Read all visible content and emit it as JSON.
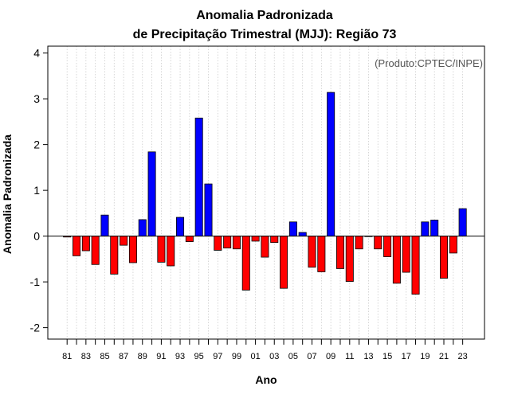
{
  "chart_data": {
    "type": "bar",
    "title": "Anomalia Padronizada",
    "subtitle": "de Precipitação Trimestral (MJJ): Região 73",
    "xlabel": "Ano",
    "ylabel": "Anomalia Padronizada",
    "annotation": "(Produto:CPTEC/INPE)",
    "ylim": [
      -2.25,
      4.15
    ],
    "yticks": [
      -2,
      -1,
      0,
      1,
      2,
      3,
      4
    ],
    "ytick_labels": [
      "-2",
      "-1",
      "0",
      "1",
      "2",
      "3",
      "4"
    ],
    "grid": "vertical dotted",
    "colors": {
      "positive": "#0000ff",
      "negative": "#ff0000",
      "zero_line": "#000000"
    },
    "categories": [
      "1981",
      "1982",
      "1983",
      "1984",
      "1985",
      "1986",
      "1987",
      "1988",
      "1989",
      "1990",
      "1991",
      "1992",
      "1993",
      "1994",
      "1995",
      "1996",
      "1997",
      "1998",
      "1999",
      "2000",
      "2001",
      "2002",
      "2003",
      "2004",
      "2005",
      "2006",
      "2007",
      "2008",
      "2009",
      "2010",
      "2011",
      "2012",
      "2013",
      "2014",
      "2015",
      "2016",
      "2017",
      "2018",
      "2019",
      "2020",
      "2021",
      "2022",
      "2023"
    ],
    "xtick_labels": [
      "81",
      "83",
      "85",
      "87",
      "89",
      "91",
      "93",
      "95",
      "97",
      "99",
      "01",
      "03",
      "05",
      "07",
      "09",
      "11",
      "13",
      "15",
      "17",
      "19",
      "21",
      "23"
    ],
    "values": [
      -0.02,
      -0.43,
      -0.32,
      -0.62,
      0.46,
      -0.83,
      -0.2,
      -0.58,
      0.36,
      1.84,
      -0.57,
      -0.65,
      0.41,
      -0.12,
      2.58,
      1.14,
      -0.31,
      -0.26,
      -0.28,
      -1.18,
      -0.11,
      -0.46,
      -0.14,
      -1.14,
      0.31,
      0.08,
      -0.68,
      -0.78,
      3.14,
      -0.71,
      -0.99,
      -0.28,
      0.0,
      -0.28,
      -0.45,
      -1.03,
      -0.79,
      -1.27,
      0.31,
      0.35,
      -0.92,
      -0.37,
      0.6
    ]
  }
}
